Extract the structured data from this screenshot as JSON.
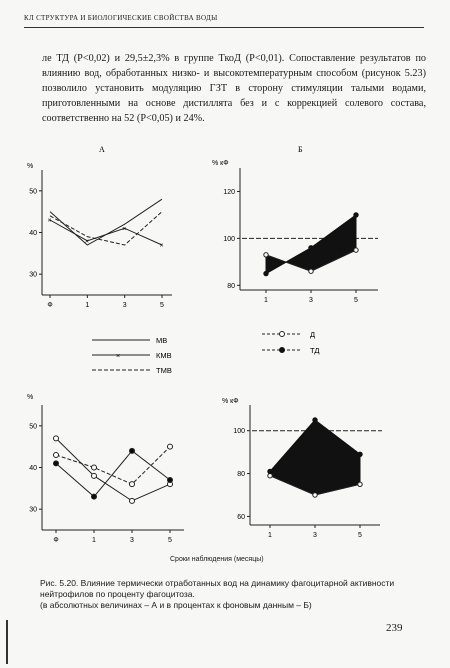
{
  "header": {
    "running_head": "КЛ СТРУКТУРА И БИОЛОГИЧЕСКИЕ СВОЙСТВА ВОДЫ"
  },
  "body_text": [
    "ле ТД (P<0,02) и 29,5±2,3% в группе ТкоД (P<0,01). Сопоставление результатов по влиянию вод, обработанных низко- и высокотемпературным способом (рисунок 5.23) позволило установить модуляцию ГЗТ в сторону стимуляции талыми водами, приготовленными на основе дистиллята без и с коррекцией солевого состава, соответственно на 52 (P<0,05) и 24%."
  ],
  "figure": {
    "panel_a_label": "А",
    "panel_b_label": "Б",
    "ylabel_abs": "%",
    "ylabel_rel": "% кФ",
    "xaxis_caption": "Сроки наблюдения (месяцы)",
    "legend_left": [
      {
        "label": "МВ",
        "style": "solid"
      },
      {
        "label": "КМВ",
        "style": "solid-x"
      },
      {
        "label": "ТМВ",
        "style": "dashed"
      }
    ],
    "legend_right": [
      {
        "label": "Д",
        "style": "open-circle"
      },
      {
        "label": "ТД",
        "style": "filled-circle"
      }
    ]
  },
  "chart_data": [
    {
      "type": "line",
      "title": "А",
      "x_ticks": [
        "Ф",
        "1",
        "3",
        "5"
      ],
      "y_ticks": [
        30,
        40,
        50
      ],
      "ylim": [
        25,
        55
      ],
      "ylabel": "%",
      "series": [
        {
          "name": "МВ",
          "values": [
            45,
            37,
            42,
            48
          ]
        },
        {
          "name": "КМВ",
          "values": [
            43,
            38,
            41,
            37
          ]
        },
        {
          "name": "ТМВ",
          "values": [
            44,
            39,
            37,
            45
          ]
        }
      ]
    },
    {
      "type": "area",
      "title": "Б",
      "x_ticks": [
        "1",
        "3",
        "5"
      ],
      "y_ticks": [
        80,
        100,
        120
      ],
      "ylim": [
        78,
        130
      ],
      "ylabel": "% кФ",
      "baseline": 100,
      "series": [
        {
          "name": "Д",
          "values": [
            93,
            86,
            95
          ]
        },
        {
          "name": "ТД",
          "values": [
            85,
            96,
            110
          ]
        }
      ]
    },
    {
      "type": "line",
      "title": "",
      "x_ticks": [
        "Ф",
        "1",
        "3",
        "5"
      ],
      "y_ticks": [
        30,
        40,
        50
      ],
      "ylim": [
        25,
        55
      ],
      "ylabel": "%",
      "series": [
        {
          "name": "МВ",
          "values": [
            47,
            38,
            32,
            36
          ]
        },
        {
          "name": "КМВ",
          "values": [
            41,
            33,
            44,
            37
          ]
        },
        {
          "name": "ТМВ",
          "values": [
            43,
            40,
            36,
            45
          ]
        }
      ]
    },
    {
      "type": "area",
      "title": "",
      "x_ticks": [
        "1",
        "3",
        "5"
      ],
      "y_ticks": [
        60,
        80,
        100
      ],
      "ylim": [
        56,
        112
      ],
      "ylabel": "% кФ",
      "baseline": 100,
      "series": [
        {
          "name": "Д",
          "values": [
            79,
            70,
            75
          ]
        },
        {
          "name": "ТД",
          "values": [
            81,
            105,
            89
          ]
        }
      ]
    }
  ],
  "caption": {
    "line1": "Рис. 5.20. Влияние термически отработанных вод на динамику фагоцитарной активности нейтрофилов по проценту фагоцитоза.",
    "line2": "(в абсолютных величинах – А и в процентах к фоновым данным – Б)"
  },
  "footer": {
    "page_number": "239"
  }
}
